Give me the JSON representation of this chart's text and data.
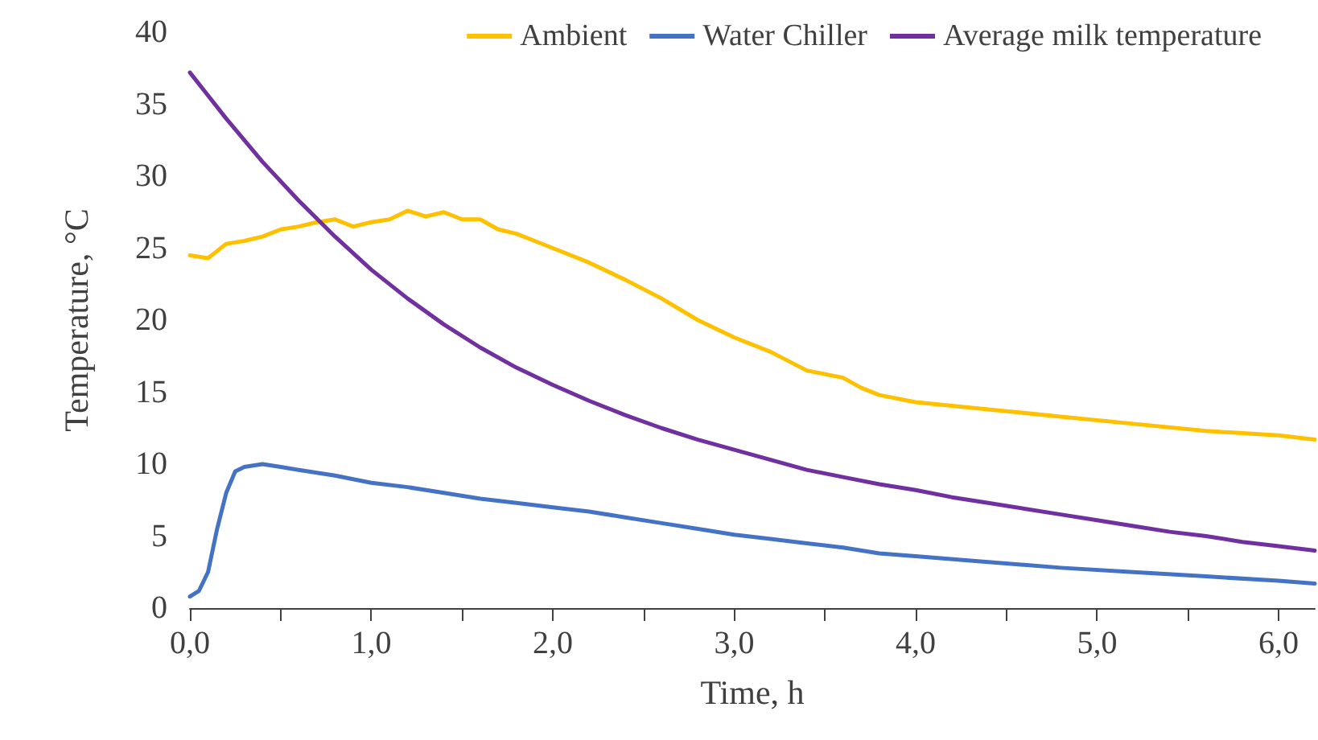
{
  "chart_data": {
    "type": "line",
    "xlabel": "Time, h",
    "ylabel": "Temperature, °C",
    "xlim": [
      0,
      6.2
    ],
    "ylim": [
      0,
      40
    ],
    "xticks": [
      {
        "value": 0,
        "label": "0,0"
      },
      {
        "value": 0.5,
        "label": null
      },
      {
        "value": 1,
        "label": "1,0"
      },
      {
        "value": 1.5,
        "label": null
      },
      {
        "value": 2,
        "label": "2,0"
      },
      {
        "value": 2.5,
        "label": null
      },
      {
        "value": 3,
        "label": "3,0"
      },
      {
        "value": 3.5,
        "label": null
      },
      {
        "value": 4,
        "label": "4,0"
      },
      {
        "value": 4.5,
        "label": null
      },
      {
        "value": 5,
        "label": "5,0"
      },
      {
        "value": 5.5,
        "label": null
      },
      {
        "value": 6,
        "label": "6,0"
      }
    ],
    "yticks": [
      0,
      5,
      10,
      15,
      20,
      25,
      30,
      35,
      40
    ],
    "grid": false,
    "legend": "top right",
    "marker": "none",
    "line_style": "solid",
    "series": [
      {
        "name": "Ambient",
        "color": "#ffc000",
        "x": [
          0,
          0.1,
          0.2,
          0.3,
          0.4,
          0.5,
          0.6,
          0.7,
          0.8,
          0.9,
          1.0,
          1.1,
          1.2,
          1.3,
          1.4,
          1.5,
          1.6,
          1.7,
          1.8,
          1.9,
          2.0,
          2.2,
          2.4,
          2.6,
          2.8,
          3.0,
          3.2,
          3.4,
          3.6,
          3.7,
          3.8,
          4.0,
          4.4,
          4.8,
          5.2,
          5.6,
          6.0,
          6.2
        ],
        "values": [
          24.5,
          24.3,
          25.3,
          25.5,
          25.8,
          26.3,
          26.5,
          26.8,
          27.0,
          26.5,
          26.8,
          27.0,
          27.6,
          27.2,
          27.5,
          27.0,
          27.0,
          26.3,
          26.0,
          25.5,
          25.0,
          24.0,
          22.8,
          21.5,
          20.0,
          18.8,
          17.8,
          16.5,
          16.0,
          15.3,
          14.8,
          14.3,
          13.8,
          13.3,
          12.8,
          12.3,
          12.0,
          11.7
        ]
      },
      {
        "name": "Water Chiller",
        "color": "#4472c4",
        "x": [
          0,
          0.05,
          0.1,
          0.15,
          0.2,
          0.25,
          0.3,
          0.4,
          0.5,
          0.6,
          0.8,
          1.0,
          1.2,
          1.4,
          1.6,
          1.8,
          2.0,
          2.2,
          2.4,
          2.6,
          2.8,
          3.0,
          3.2,
          3.4,
          3.6,
          3.8,
          4.0,
          4.4,
          4.8,
          5.2,
          5.6,
          6.0,
          6.2
        ],
        "values": [
          0.8,
          1.2,
          2.5,
          5.5,
          8.0,
          9.5,
          9.8,
          10.0,
          9.8,
          9.6,
          9.2,
          8.7,
          8.4,
          8.0,
          7.6,
          7.3,
          7.0,
          6.7,
          6.3,
          5.9,
          5.5,
          5.1,
          4.8,
          4.5,
          4.2,
          3.8,
          3.6,
          3.2,
          2.8,
          2.5,
          2.2,
          1.9,
          1.7
        ]
      },
      {
        "name": "Average milk temperature",
        "color": "#7030a0",
        "x": [
          0,
          0.2,
          0.4,
          0.6,
          0.8,
          1.0,
          1.2,
          1.4,
          1.6,
          1.8,
          2.0,
          2.2,
          2.4,
          2.6,
          2.8,
          3.0,
          3.2,
          3.4,
          3.6,
          3.8,
          4.0,
          4.2,
          4.4,
          4.6,
          4.8,
          5.0,
          5.2,
          5.4,
          5.6,
          5.8,
          6.0,
          6.2
        ],
        "values": [
          37.2,
          34.0,
          31.0,
          28.3,
          25.8,
          23.5,
          21.5,
          19.7,
          18.1,
          16.7,
          15.5,
          14.4,
          13.4,
          12.5,
          11.7,
          11.0,
          10.3,
          9.6,
          9.1,
          8.6,
          8.2,
          7.7,
          7.3,
          6.9,
          6.5,
          6.1,
          5.7,
          5.3,
          5.0,
          4.6,
          4.3,
          4.0
        ]
      }
    ]
  }
}
